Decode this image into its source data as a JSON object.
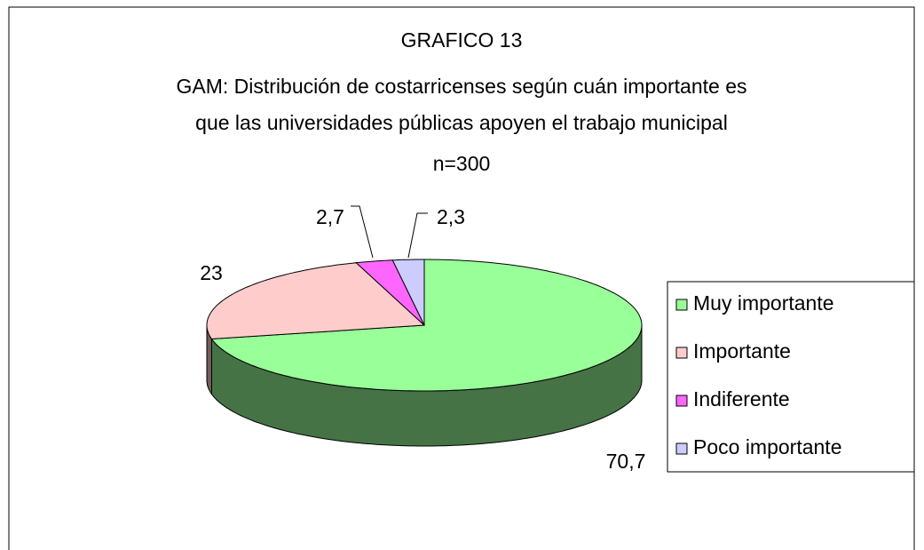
{
  "chart_data": {
    "type": "pie",
    "title": "GRAFICO 13",
    "subtitle": [
      "GAM: Distribución de costarricenses según cuán importante es",
      "que las universidades públicas apoyen el trabajo municipal"
    ],
    "annotation": "n=300",
    "categories": [
      "Muy importante",
      "Importante",
      "Indiferente",
      "Poco importante"
    ],
    "values": [
      70.7,
      23,
      2.7,
      2.3
    ],
    "value_labels": [
      "70,7",
      "23",
      "2,7",
      "2,3"
    ],
    "colors": [
      "#99ff99",
      "#ffcccc",
      "#ff66ff",
      "#ccccff"
    ],
    "legend": "right"
  }
}
